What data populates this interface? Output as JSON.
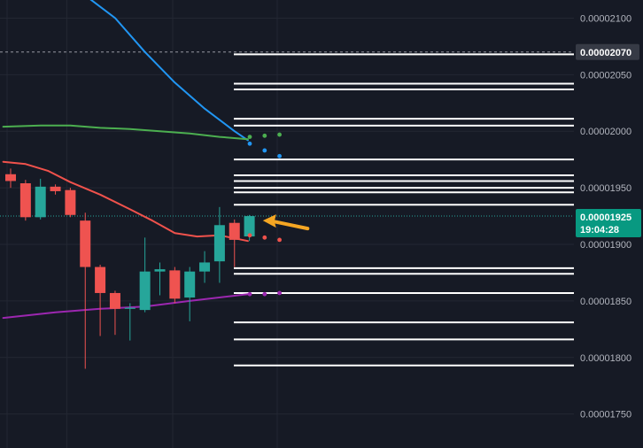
{
  "chart_data": {
    "type": "candlestick",
    "y_ticks": [
      "0.00002100",
      "0.00002050",
      "0.00002000",
      "0.00001950",
      "0.00001900",
      "0.00001850",
      "0.00001800",
      "0.00001750"
    ],
    "y_tick_values": [
      2.1e-05,
      2.05e-05,
      2e-05,
      1.95e-05,
      1.9e-05,
      1.85e-05,
      1.8e-05,
      1.75e-05
    ],
    "ylim": [
      1.72e-05,
      2.116e-05
    ],
    "grid": true,
    "price_tag": {
      "label": "0.00002070",
      "value": 2.07e-05
    },
    "current_price_tag": {
      "label": "0.00001925",
      "countdown": "19:04:28",
      "value": 1.925e-05
    },
    "candles": [
      {
        "o": 1.962e-05,
        "h": 1.967e-05,
        "l": 1.95e-05,
        "c": 1.956e-05
      },
      {
        "o": 1.954e-05,
        "h": 1.957e-05,
        "l": 1.921e-05,
        "c": 1.924e-05
      },
      {
        "o": 1.924e-05,
        "h": 1.958e-05,
        "l": 1.922e-05,
        "c": 1.951e-05
      },
      {
        "o": 1.951e-05,
        "h": 1.953e-05,
        "l": 1.944e-05,
        "c": 1.947e-05
      },
      {
        "o": 1.948e-05,
        "h": 1.95e-05,
        "l": 1.924e-05,
        "c": 1.926e-05
      },
      {
        "o": 1.921e-05,
        "h": 1.928e-05,
        "l": 1.79e-05,
        "c": 1.88e-05
      },
      {
        "o": 1.88e-05,
        "h": 1.882e-05,
        "l": 1.819e-05,
        "c": 1.857e-05
      },
      {
        "o": 1.857e-05,
        "h": 1.859e-05,
        "l": 1.82e-05,
        "c": 1.843e-05
      },
      {
        "o": 1.843e-05,
        "h": 1.848e-05,
        "l": 1.815e-05,
        "c": 1.844e-05
      },
      {
        "o": 1.842e-05,
        "h": 1.906e-05,
        "l": 1.84e-05,
        "c": 1.876e-05
      },
      {
        "o": 1.876e-05,
        "h": 1.884e-05,
        "l": 1.855e-05,
        "c": 1.878e-05
      },
      {
        "o": 1.877e-05,
        "h": 1.88e-05,
        "l": 1.848e-05,
        "c": 1.852e-05
      },
      {
        "o": 1.853e-05,
        "h": 1.88e-05,
        "l": 1.832e-05,
        "c": 1.876e-05
      },
      {
        "o": 1.876e-05,
        "h": 1.894e-05,
        "l": 1.866e-05,
        "c": 1.884e-05
      },
      {
        "o": 1.885e-05,
        "h": 1.933e-05,
        "l": 1.866e-05,
        "c": 1.917e-05
      },
      {
        "o": 1.919e-05,
        "h": 1.922e-05,
        "l": 1.88e-05,
        "c": 1.904e-05
      },
      {
        "o": 1.907e-05,
        "h": 1.926e-05,
        "l": 1.903e-05,
        "c": 1.925e-05
      }
    ],
    "moving_averages": [
      {
        "color": "#2196f3",
        "points": [
          [
            4,
            2.13e-05
          ],
          [
            7,
            2.1e-05
          ],
          [
            9,
            2.07e-05
          ],
          [
            11,
            2.043e-05
          ],
          [
            13,
            2.02e-05
          ],
          [
            15,
            2e-05
          ],
          [
            15.9,
            1.992e-05
          ]
        ]
      },
      {
        "color": "#4caf50",
        "points": [
          [
            -0.5,
            2.004e-05
          ],
          [
            2,
            2.005e-05
          ],
          [
            4,
            2.005e-05
          ],
          [
            6,
            2.003e-05
          ],
          [
            8,
            2.002e-05
          ],
          [
            10,
            2e-05
          ],
          [
            12,
            1.998e-05
          ],
          [
            14,
            1.995e-05
          ],
          [
            15.9,
            1.993e-05
          ]
        ]
      },
      {
        "color": "#f0524c",
        "points": [
          [
            -0.5,
            1.973e-05
          ],
          [
            1,
            1.971e-05
          ],
          [
            2.5,
            1.965e-05
          ],
          [
            4,
            1.955e-05
          ],
          [
            6,
            1.944e-05
          ],
          [
            8,
            1.931e-05
          ],
          [
            9.5,
            1.921e-05
          ],
          [
            11,
            1.91e-05
          ],
          [
            12.5,
            1.907e-05
          ],
          [
            14,
            1.908e-05
          ],
          [
            15.9,
            1.903e-05
          ]
        ]
      },
      {
        "color": "#9c27b0",
        "points": [
          [
            -0.5,
            1.835e-05
          ],
          [
            3,
            1.84e-05
          ],
          [
            6,
            1.843e-05
          ],
          [
            9,
            1.845e-05
          ],
          [
            12,
            1.85e-05
          ],
          [
            15.9,
            1.856e-05
          ]
        ]
      }
    ],
    "level_lines": [
      2.068e-05,
      2.042e-05,
      2.037e-05,
      2.011e-05,
      2.005e-05,
      1.975e-05,
      1.961e-05,
      1.956e-05,
      1.95e-05,
      1.946e-05,
      1.935e-05,
      1.879e-05,
      1.874e-05,
      1.857e-05,
      1.831e-05,
      1.816e-05,
      1.793e-05
    ],
    "projection_dots": [
      {
        "color": "#4caf50",
        "values": [
          1.995e-05,
          1.996e-05,
          1.997e-05
        ]
      },
      {
        "color": "#2196f3",
        "values": [
          1.989e-05,
          1.983e-05,
          1.978e-05
        ]
      },
      {
        "color": "#f0524c",
        "values": [
          1.908e-05,
          1.906e-05,
          1.904e-05
        ]
      },
      {
        "color": "#9c27b0",
        "values": [
          1.856e-05,
          1.856e-05,
          1.857e-05
        ]
      }
    ],
    "arrow": {
      "color": "#f5a623",
      "from_bar": 19.9,
      "from_value": 1.914e-05,
      "to_bar": 16.9,
      "to_value": 1.921e-05
    }
  },
  "colors": {
    "background": "#161a25",
    "grid": "#232733",
    "up": "#26a69a",
    "down": "#ef5350",
    "level": "#ffffff",
    "tag_bg": "#363a45",
    "tag_text": "#ffffff",
    "current_bg": "#089981",
    "current_line": "#26a69a"
  }
}
